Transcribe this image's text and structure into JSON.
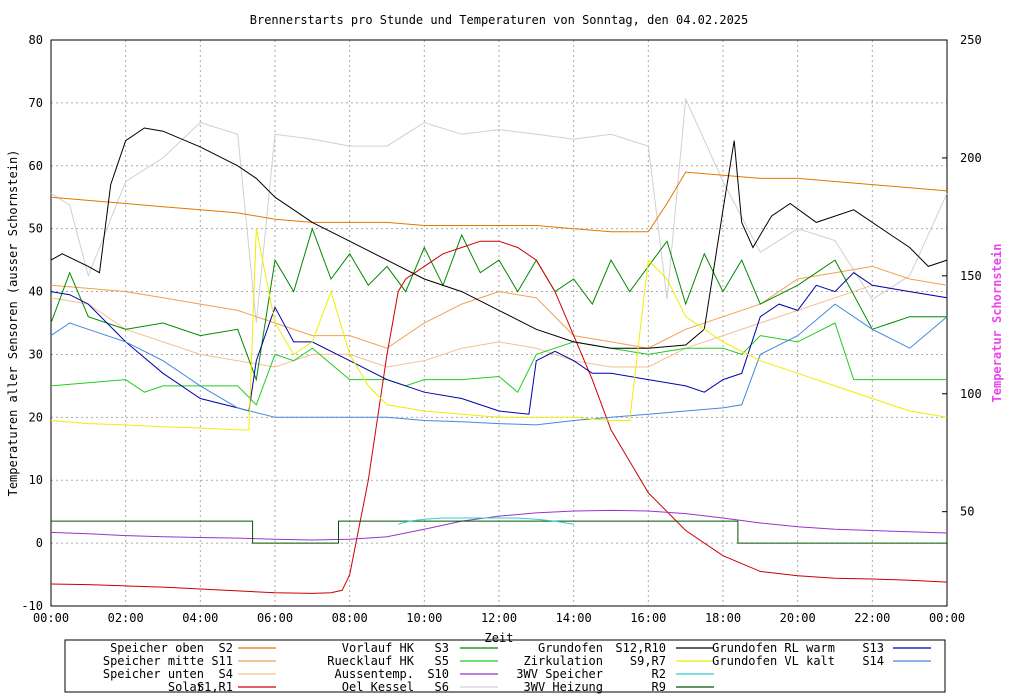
{
  "chart_data": {
    "type": "line",
    "title": "Brennerstarts pro Stunde und Temperaturen von Sonntag, den 04.02.2025",
    "xlabel": "Zeit",
    "ylabel": "Temperaturen aller Sensoren (ausser Schornstein)",
    "y2label": "Temperatur Schornstein",
    "xlim": [
      0,
      24
    ],
    "ylim": [
      -10,
      80
    ],
    "y2lim": [
      10,
      250
    ],
    "grid": true,
    "x_ticks": [
      "00:00",
      "02:00",
      "04:00",
      "06:00",
      "08:00",
      "10:00",
      "12:00",
      "14:00",
      "16:00",
      "18:00",
      "20:00",
      "22:00",
      "00:00"
    ],
    "y_ticks": [
      "-10",
      "0",
      "10",
      "20",
      "30",
      "40",
      "50",
      "60",
      "70",
      "80"
    ],
    "y2_ticks": [
      "50",
      "100",
      "150",
      "200",
      "250"
    ],
    "colors": {
      "S2": "#e07800",
      "S11": "#f0a050",
      "S4": "#f5c090",
      "S1": "#cc0000",
      "S3": "#008800",
      "S5": "#22cc22",
      "S10": "#9933cc",
      "S6": "#d0d0d0",
      "S12": "#000000",
      "S9": "#eeee00",
      "R2": "#33cccc",
      "R9": "#005500",
      "S13": "#0000aa",
      "S14": "#4488dd",
      "Y2": "#ee44ee"
    },
    "series": [
      {
        "id": "S6",
        "axis": "y2",
        "x": [
          0,
          0.5,
          1,
          1.5,
          2,
          3,
          4,
          5,
          5.5,
          6,
          7,
          8,
          9,
          9.5,
          10,
          11,
          12,
          13,
          14,
          15,
          16,
          16.5,
          17,
          18,
          19,
          20,
          21,
          22,
          23,
          24
        ],
        "y": [
          185,
          180,
          150,
          170,
          190,
          200,
          215,
          210,
          130,
          210,
          208,
          205,
          205,
          210,
          215,
          210,
          212,
          210,
          208,
          210,
          205,
          140,
          225,
          190,
          160,
          170,
          165,
          140,
          150,
          185
        ]
      },
      {
        "id": "S2",
        "axis": "y",
        "x": [
          0,
          1,
          2,
          3,
          4,
          5,
          6,
          7,
          8,
          9,
          10,
          11,
          12,
          13,
          14,
          15,
          15.5,
          16,
          16.5,
          17,
          18,
          19,
          20,
          21,
          22,
          23,
          24
        ],
        "y": [
          55,
          54.5,
          54,
          53.5,
          53,
          52.5,
          51.5,
          51,
          51,
          51,
          50.5,
          50.5,
          50.5,
          50.5,
          50,
          49.5,
          49.5,
          49.5,
          54,
          59,
          58.5,
          58,
          58,
          57.5,
          57,
          56.5,
          56
        ]
      },
      {
        "id": "S11",
        "axis": "y",
        "x": [
          0,
          1,
          2,
          3,
          4,
          5,
          6,
          7,
          8,
          9,
          10,
          11,
          12,
          13,
          14,
          15,
          16,
          17,
          18,
          19,
          20,
          21,
          22,
          23,
          24
        ],
        "y": [
          41,
          40.5,
          40,
          39,
          38,
          37,
          35,
          33,
          33,
          31,
          35,
          38,
          40,
          39,
          33,
          32,
          31,
          34,
          36,
          38,
          42,
          43,
          44,
          42,
          41
        ]
      },
      {
        "id": "S4",
        "axis": "y",
        "x": [
          0,
          1,
          2,
          3,
          4,
          5,
          6,
          7,
          8,
          9,
          10,
          11,
          12,
          13,
          14,
          15,
          16,
          17,
          18,
          19,
          20,
          21,
          22,
          23,
          24
        ],
        "y": [
          39,
          38,
          34,
          32,
          30,
          29,
          28,
          30,
          30,
          28,
          29,
          31,
          32,
          31,
          29,
          28,
          28,
          31,
          33,
          35,
          37,
          39,
          41,
          40,
          39
        ]
      },
      {
        "id": "S3",
        "axis": "y",
        "x": [
          0,
          0.5,
          1,
          2,
          3,
          4,
          5,
          5.5,
          6,
          6.5,
          7,
          7.5,
          8,
          8.5,
          9,
          9.5,
          10,
          10.5,
          11,
          11.5,
          12,
          12.5,
          13,
          13.5,
          14,
          14.5,
          15,
          15.5,
          16,
          16.5,
          17,
          17.5,
          18,
          18.5,
          19,
          20,
          21,
          22,
          23,
          24
        ],
        "y": [
          35,
          43,
          36,
          34,
          35,
          33,
          34,
          26,
          45,
          40,
          50,
          42,
          46,
          41,
          44,
          40,
          47,
          41,
          49,
          43,
          45,
          40,
          45,
          40,
          42,
          38,
          45,
          40,
          44,
          48,
          38,
          46,
          40,
          45,
          38,
          41,
          45,
          34,
          36,
          36
        ]
      },
      {
        "id": "S5",
        "axis": "y",
        "x": [
          0,
          1,
          2,
          2.5,
          3,
          4,
          5,
          5.5,
          6,
          6.5,
          7,
          8,
          9,
          9.5,
          10,
          11,
          12,
          12.5,
          13,
          13.5,
          14,
          15,
          16,
          17,
          18,
          18.5,
          19,
          20,
          21,
          21.5,
          22,
          23,
          24
        ],
        "y": [
          25,
          25.5,
          26,
          24,
          25,
          25,
          25,
          22,
          30,
          29,
          31,
          26,
          26,
          25,
          26,
          26,
          26.5,
          24,
          30,
          31,
          32,
          31,
          30,
          31,
          31,
          30,
          33,
          32,
          35,
          26,
          26,
          26,
          26
        ]
      },
      {
        "id": "S1",
        "axis": "y",
        "x": [
          0,
          1,
          2,
          3,
          4,
          5,
          6,
          7,
          7.5,
          7.8,
          8,
          8.5,
          9,
          9.3,
          9.5,
          10,
          10.5,
          11,
          11.5,
          12,
          12.5,
          13,
          13.5,
          14,
          14.5,
          15,
          16,
          17,
          18,
          19,
          20,
          21,
          22,
          23,
          24
        ],
        "y": [
          -6.5,
          -6.6,
          -6.8,
          -7,
          -7.3,
          -7.6,
          -7.9,
          -8,
          -7.9,
          -7.5,
          -5,
          10,
          30,
          40,
          42,
          44,
          46,
          47,
          48,
          48,
          47,
          45,
          40,
          33,
          26,
          18,
          8,
          2,
          -2,
          -4.5,
          -5.2,
          -5.6,
          -5.7,
          -5.9,
          -6.2
        ]
      },
      {
        "id": "S10",
        "axis": "y",
        "x": [
          0,
          1,
          2,
          3,
          4,
          5,
          6,
          7,
          8,
          9,
          10,
          11,
          12,
          13,
          14,
          15,
          16,
          17,
          18,
          19,
          20,
          21,
          22,
          23,
          24
        ],
        "y": [
          1.7,
          1.5,
          1.2,
          1,
          0.9,
          0.8,
          0.6,
          0.5,
          0.6,
          1,
          2.2,
          3.5,
          4.3,
          4.8,
          5.1,
          5.2,
          5.1,
          4.7,
          4,
          3.2,
          2.6,
          2.2,
          2,
          1.8,
          1.6
        ]
      },
      {
        "id": "S12",
        "axis": "y",
        "x": [
          0,
          0.3,
          1,
          1.3,
          1.6,
          2,
          2.5,
          3,
          4,
          5,
          5.5,
          6,
          6.5,
          7,
          8,
          9,
          10,
          11,
          12,
          13,
          14,
          15,
          16,
          17,
          17.5,
          18,
          18.3,
          18.5,
          18.8,
          19.3,
          19.8,
          20.5,
          21.5,
          22.5,
          23,
          23.5,
          24
        ],
        "y": [
          45,
          46,
          44,
          43,
          57,
          64,
          66,
          65.5,
          63,
          60,
          58,
          55,
          53,
          51,
          48,
          45,
          42,
          40,
          37,
          34,
          32,
          31,
          31,
          31.5,
          34,
          53,
          64,
          51,
          47,
          52,
          54,
          51,
          53,
          49,
          47,
          44,
          45
        ]
      },
      {
        "id": "S13",
        "axis": "y",
        "x": [
          0,
          0.5,
          1,
          2,
          3,
          4,
          5,
          5.3,
          5.5,
          6,
          6.5,
          7,
          8,
          9,
          10,
          11,
          12,
          12.8,
          13,
          13.5,
          14,
          14.5,
          15,
          16,
          17,
          17.5,
          18,
          18.5,
          19,
          19.5,
          20,
          20.5,
          21,
          21.5,
          22,
          23,
          24
        ],
        "y": [
          40,
          39.5,
          38,
          32,
          27,
          23,
          21.5,
          21,
          29,
          37.5,
          32,
          32,
          29,
          26,
          24,
          23,
          21,
          20.5,
          29,
          30.5,
          29,
          27,
          27,
          26,
          25,
          24,
          26,
          27,
          36,
          38,
          37,
          41,
          40,
          43,
          41,
          40,
          39
        ]
      },
      {
        "id": "S14",
        "axis": "y",
        "x": [
          0,
          0.5,
          1,
          2,
          3,
          4,
          5,
          6,
          7,
          8,
          9,
          10,
          11,
          12,
          13,
          14,
          15,
          16,
          17,
          18,
          18.5,
          19,
          20,
          21,
          22,
          23,
          24
        ],
        "y": [
          33,
          35,
          34,
          32,
          29,
          25,
          21.5,
          20,
          20,
          20,
          20,
          19.5,
          19.3,
          19,
          18.8,
          19.5,
          20,
          20.5,
          21,
          21.5,
          22,
          30,
          33,
          38,
          34,
          31,
          36
        ]
      },
      {
        "id": "S9",
        "axis": "y",
        "x": [
          0,
          1,
          2,
          3,
          4,
          5,
          5.3,
          5.5,
          6,
          6.5,
          7,
          7.5,
          8,
          8.5,
          9,
          10,
          11,
          12,
          13,
          14,
          15,
          15.5,
          16,
          16.5,
          17,
          18,
          19,
          20,
          21,
          22,
          23,
          24
        ],
        "y": [
          19.5,
          19,
          18.8,
          18.5,
          18.3,
          18,
          18,
          50,
          35,
          30,
          32,
          40,
          30,
          25,
          22,
          21,
          20.5,
          20,
          20,
          20,
          19.5,
          19.5,
          45,
          42,
          36,
          32,
          29,
          27,
          25,
          23,
          21,
          20
        ]
      },
      {
        "id": "R9",
        "axis": "y",
        "x": [
          0,
          5.4,
          5.4,
          7.7,
          7.7,
          18.4,
          18.4,
          24
        ],
        "y": [
          3.5,
          3.5,
          0,
          0,
          3.5,
          3.5,
          0,
          0
        ]
      },
      {
        "id": "R2",
        "axis": "y",
        "x": [
          9.3,
          9.6,
          10,
          10.5,
          11,
          11.5,
          12,
          12.5,
          13,
          13.5,
          14
        ],
        "y": [
          3,
          3.5,
          3.8,
          4,
          4,
          4,
          4,
          4,
          3.8,
          3.5,
          3
        ]
      }
    ],
    "legend": [
      {
        "name": "Speicher oben",
        "code": "S2",
        "key": "S2"
      },
      {
        "name": "Speicher mitte",
        "code": "S11",
        "key": "S11"
      },
      {
        "name": "Speicher unten",
        "code": "S4",
        "key": "S4"
      },
      {
        "name": "Solar",
        "code": "S1,R1",
        "key": "S1"
      },
      {
        "name": "Vorlauf HK",
        "code": "S3",
        "key": "S3"
      },
      {
        "name": "Ruecklauf HK",
        "code": "S5",
        "key": "S5"
      },
      {
        "name": "Aussentemp.",
        "code": "S10",
        "key": "S10"
      },
      {
        "name": "Oel Kessel",
        "code": "S6",
        "key": "S6"
      },
      {
        "name": "Grundofen",
        "code": "S12,R10",
        "key": "S12"
      },
      {
        "name": "Zirkulation",
        "code": "S9,R7",
        "key": "S9"
      },
      {
        "name": "3WV Speicher",
        "code": "R2",
        "key": "R2"
      },
      {
        "name": "3WV Heizung",
        "code": "R9",
        "key": "R9"
      },
      {
        "name": "Grundofen RL warm",
        "code": "S13",
        "key": "S13"
      },
      {
        "name": "Grundofen VL kalt",
        "code": "S14",
        "key": "S14"
      }
    ]
  }
}
